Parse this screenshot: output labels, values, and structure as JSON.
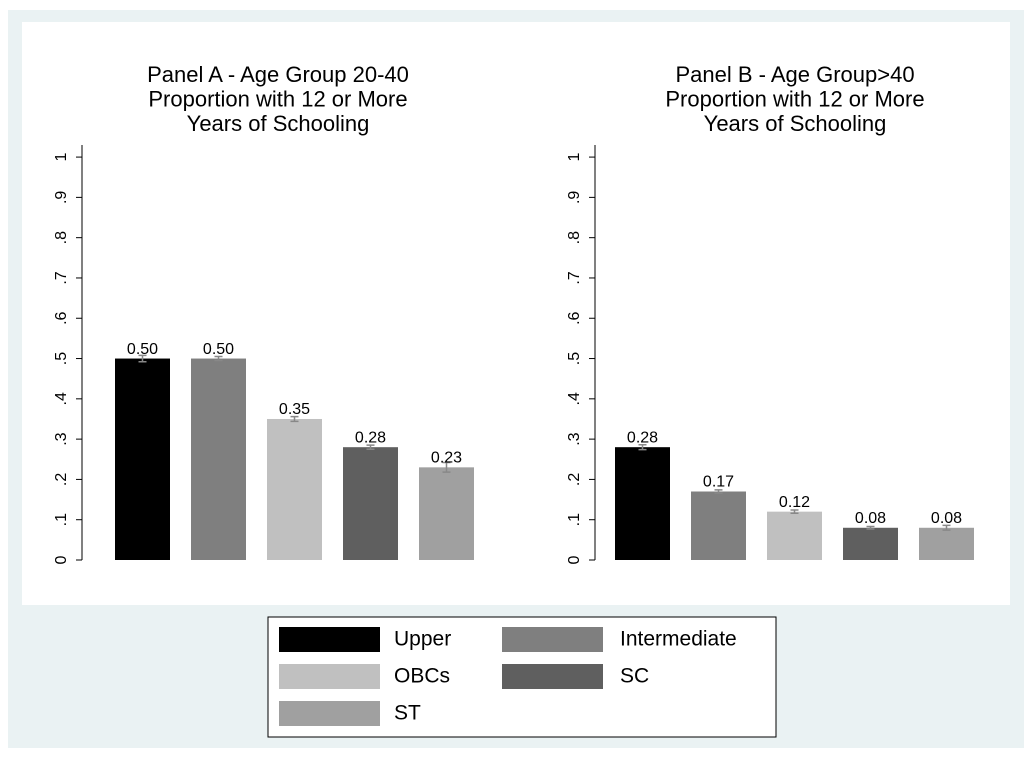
{
  "chart_data": [
    {
      "type": "bar",
      "title": [
        "Panel A - Age Group 20-40",
        "Proportion with 12 or More",
        "Years of Schooling"
      ],
      "values": [
        0.5,
        0.5,
        0.35,
        0.28,
        0.23
      ],
      "value_labels": [
        "0.50",
        "0.50",
        "0.35",
        "0.28",
        "0.23"
      ],
      "errors": [
        0.008,
        0.005,
        0.006,
        0.005,
        0.012
      ],
      "ylim": [
        0,
        1.03
      ],
      "yticks": [
        0,
        {
          "value": 0.1,
          "label": ".1"
        },
        {
          "value": 0.2,
          "label": ".2"
        },
        {
          "value": 0.3,
          "label": ".3"
        },
        {
          "value": 0.4,
          "label": ".4"
        },
        {
          "value": 0.5,
          "label": ".5"
        },
        {
          "value": 0.6,
          "label": ".6"
        },
        {
          "value": 0.7,
          "label": ".7"
        },
        {
          "value": 0.8,
          "label": ".8"
        },
        {
          "value": 0.9,
          "label": ".9"
        },
        1
      ]
    },
    {
      "type": "bar",
      "title": [
        "Panel B - Age Group>40",
        "Proportion with 12 or More",
        "Years of Schooling"
      ],
      "values": [
        0.28,
        0.17,
        0.12,
        0.08,
        0.08
      ],
      "value_labels": [
        "0.28",
        "0.17",
        "0.12",
        "0.08",
        "0.08"
      ],
      "errors": [
        0.006,
        0.004,
        0.004,
        0.003,
        0.006
      ],
      "ylim": [
        0,
        1.03
      ],
      "yticks": [
        0,
        {
          "value": 0.1,
          "label": ".1"
        },
        {
          "value": 0.2,
          "label": ".2"
        },
        {
          "value": 0.3,
          "label": ".3"
        },
        {
          "value": 0.4,
          "label": ".4"
        },
        {
          "value": 0.5,
          "label": ".5"
        },
        {
          "value": 0.6,
          "label": ".6"
        },
        {
          "value": 0.7,
          "label": ".7"
        },
        {
          "value": 0.8,
          "label": ".8"
        },
        {
          "value": 0.9,
          "label": ".9"
        },
        1
      ]
    }
  ],
  "legend": {
    "labels": [
      "Upper",
      "Intermediate",
      "OBCs",
      "SC",
      "ST"
    ],
    "colors": [
      "#000000",
      "#7f7f7f",
      "#c0c0c0",
      "#5f5f5f",
      "#a0a0a0"
    ]
  }
}
